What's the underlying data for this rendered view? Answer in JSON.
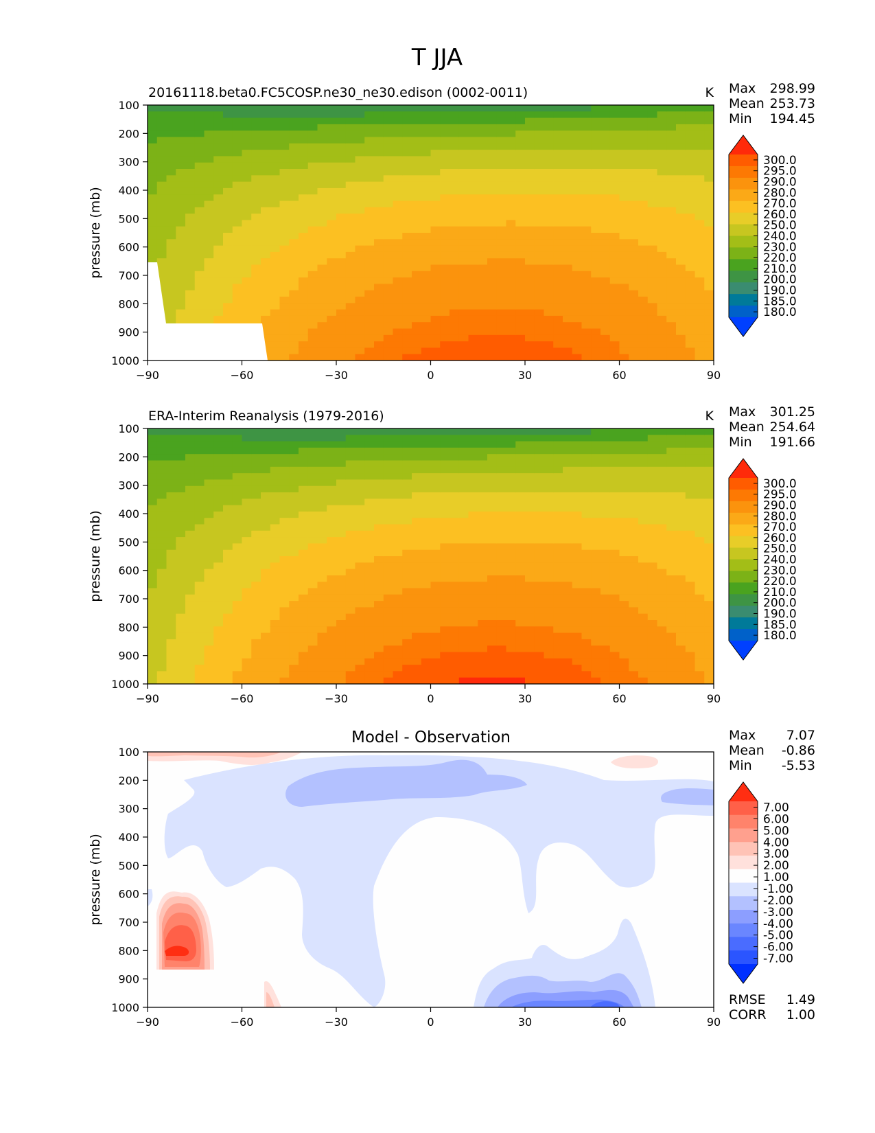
{
  "figure": {
    "title": "T JJA"
  },
  "colors": {
    "abs": [
      "#0040ff",
      "#0061c9",
      "#007a99",
      "#3a8c70",
      "#3e9444",
      "#4aa31f",
      "#7cb217",
      "#a3be17",
      "#c7c620",
      "#e8cd28",
      "#fcc022",
      "#fba917",
      "#fb930d",
      "#fd7903",
      "#ff5c00",
      "#ff2a0a"
    ],
    "diff": [
      "#0030ff",
      "#2b55ff",
      "#4a6cff",
      "#6a86ff",
      "#8c9eff",
      "#b3c1ff",
      "#dae3ff",
      "#fefefe",
      "#ffe1dc",
      "#ffc3b6",
      "#ffa08e",
      "#ff836b",
      "#ff6048",
      "#ff2e12"
    ]
  },
  "chart_data": [
    {
      "type": "contour",
      "name": "model",
      "title": "20161118.beta0.FC5COSP.ne30_ne30.edison (0002-0011)",
      "units": "K",
      "xlabel": "",
      "ylabel": "pressure (mb)",
      "xlim": [
        -90,
        90
      ],
      "ylim": [
        1000,
        100
      ],
      "xticks": [
        "−90",
        "−60",
        "−30",
        "0",
        "30",
        "60",
        "90"
      ],
      "yticks": [
        "100",
        "200",
        "300",
        "400",
        "500",
        "600",
        "700",
        "800",
        "900",
        "1000"
      ],
      "stats": {
        "max_label": "Max",
        "mean_label": "Mean",
        "min_label": "Min",
        "max": "298.99",
        "mean": "253.73",
        "min": "194.45"
      },
      "levels": [
        "300.0",
        "295.0",
        "290.0",
        "280.0",
        "270.0",
        "260.0",
        "250.0",
        "240.0",
        "230.0",
        "220.0",
        "210.0",
        "200.0",
        "190.0",
        "185.0",
        "180.0"
      ],
      "tropopause_t": 200,
      "surface_t": 299,
      "masked": true
    },
    {
      "type": "contour",
      "name": "obs",
      "title": "ERA-Interim Reanalysis (1979-2016)",
      "units": "K",
      "xlabel": "",
      "ylabel": "pressure (mb)",
      "xlim": [
        -90,
        90
      ],
      "ylim": [
        1000,
        100
      ],
      "xticks": [
        "−90",
        "−60",
        "−30",
        "0",
        "30",
        "60",
        "90"
      ],
      "yticks": [
        "100",
        "200",
        "300",
        "400",
        "500",
        "600",
        "700",
        "800",
        "900",
        "1000"
      ],
      "stats": {
        "max_label": "Max",
        "mean_label": "Mean",
        "min_label": "Min",
        "max": "301.25",
        "mean": "254.64",
        "min": "191.66"
      },
      "levels": [
        "300.0",
        "295.0",
        "290.0",
        "280.0",
        "270.0",
        "260.0",
        "250.0",
        "240.0",
        "230.0",
        "220.0",
        "210.0",
        "200.0",
        "190.0",
        "185.0",
        "180.0"
      ],
      "tropopause_t": 200,
      "surface_t": 301,
      "masked": false
    },
    {
      "type": "contour",
      "name": "diff",
      "title": "Model - Observation",
      "units": "",
      "xlabel": "",
      "ylabel": "pressure (mb)",
      "xlim": [
        -90,
        90
      ],
      "ylim": [
        1000,
        100
      ],
      "xticks": [
        "−90",
        "−60",
        "−30",
        "0",
        "30",
        "60",
        "90"
      ],
      "yticks": [
        "100",
        "200",
        "300",
        "400",
        "500",
        "600",
        "700",
        "800",
        "900",
        "1000"
      ],
      "stats": {
        "max_label": "Max",
        "mean_label": "Mean",
        "min_label": "Min",
        "max": "7.07",
        "mean": "-0.86",
        "min": "-5.53"
      },
      "levels": [
        "7.00",
        "6.00",
        "5.00",
        "4.00",
        "3.00",
        "2.00",
        "1.00",
        "-1.00",
        "-2.00",
        "-3.00",
        "-4.00",
        "-5.00",
        "-6.00",
        "-7.00"
      ],
      "metrics": {
        "rmse_label": "RMSE",
        "rmse": "1.49",
        "corr_label": "CORR",
        "corr": "1.00"
      }
    }
  ]
}
